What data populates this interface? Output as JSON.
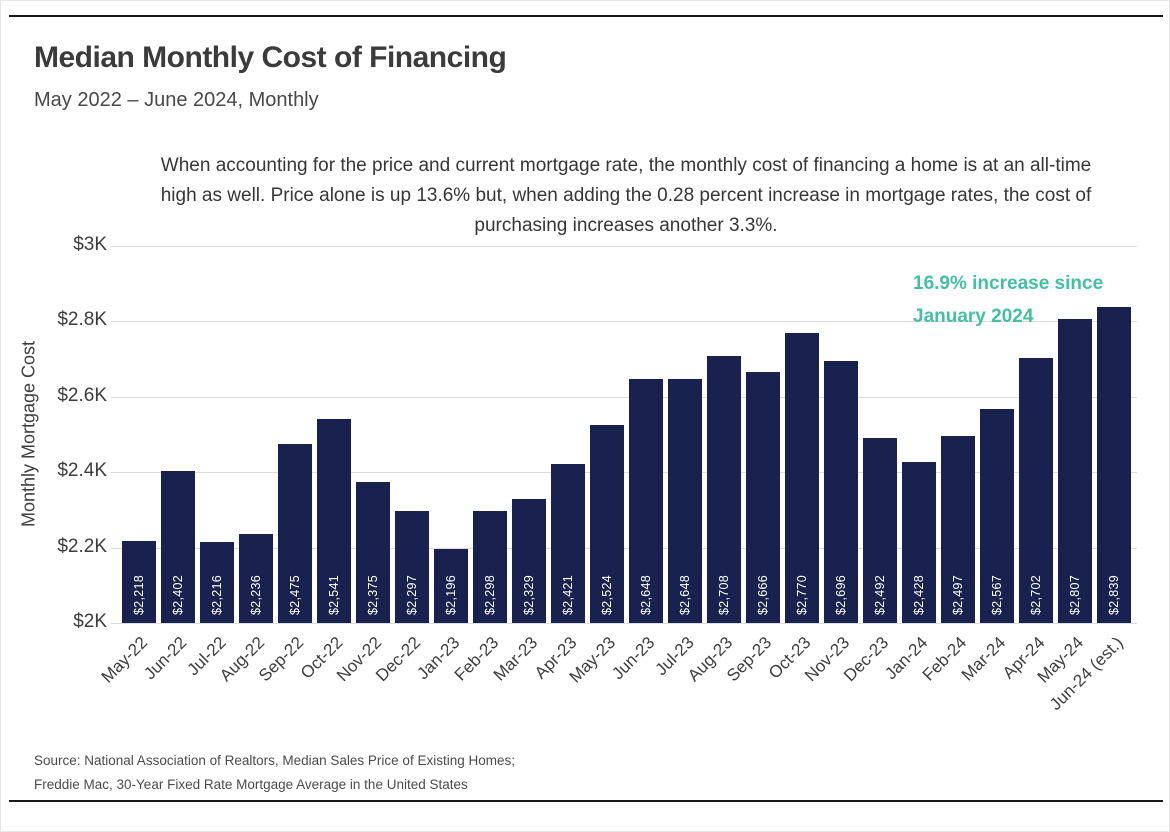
{
  "page": {
    "title": "Median Monthly Cost of Financing",
    "subtitle": "May 2022 – June 2024, Monthly",
    "description_lines": [
      "When accounting for the price and current mortgage rate, the monthly cost of financing a home is at an all-time",
      "high as well. Price alone is up 13.6% but, when adding the 0.28 percent increase in mortgage rates, the cost of",
      "purchasing increases another 3.3%."
    ],
    "source_lines": [
      "Source: National Association of Realtors, Median Sales Price of Existing Homes;",
      "Freddie Mac, 30-Year Fixed Rate Mortgage Average in the United States"
    ]
  },
  "chart_data": {
    "type": "bar",
    "title": "Median Monthly Cost of Financing",
    "subtitle": "May 2022 – June 2024, Monthly",
    "xlabel": "",
    "ylabel": "Monthly Mortgage Cost",
    "ylim": [
      2000,
      3000
    ],
    "grid": true,
    "categories": [
      "May-22",
      "Jun-22",
      "Jul-22",
      "Aug-22",
      "Sep-22",
      "Oct-22",
      "Nov-22",
      "Dec-22",
      "Jan-23",
      "Feb-23",
      "Mar-23",
      "Apr-23",
      "May-23",
      "Jun-23",
      "Jul-23",
      "Aug-23",
      "Sep-23",
      "Oct-23",
      "Nov-23",
      "Dec-23",
      "Jan-24",
      "Feb-24",
      "Mar-24",
      "Apr-24",
      "May-24",
      "Jun-24 (est.)"
    ],
    "values": [
      2218,
      2402,
      2216,
      2236,
      2475,
      2541,
      2375,
      2297,
      2196,
      2298,
      2329,
      2421,
      2524,
      2648,
      2648,
      2708,
      2666,
      2770,
      2696,
      2492,
      2428,
      2497,
      2567,
      2702,
      2807,
      2839
    ],
    "bar_labels": [
      "$2,218",
      "$2,402",
      "$2,216",
      "$2,236",
      "$2,475",
      "$2,541",
      "$2,375",
      "$2,297",
      "$2,196",
      "$2,298",
      "$2,329",
      "$2,421",
      "$2,524",
      "$2,648",
      "$2,648",
      "$2,708",
      "$2,666",
      "$2,770",
      "$2,696",
      "$2,492",
      "$2,428",
      "$2,497",
      "$2,567",
      "$2,702",
      "$2,807",
      "$2,839"
    ],
    "yticks": [
      {
        "value": 2000,
        "label": "$2K"
      },
      {
        "value": 2200,
        "label": "$2.2K"
      },
      {
        "value": 2400,
        "label": "$2.4K"
      },
      {
        "value": 2600,
        "label": "$2.6K"
      },
      {
        "value": 2800,
        "label": "$2.8K"
      },
      {
        "value": 3000,
        "label": "$3K"
      }
    ],
    "annotation": {
      "text_lines": [
        "16.9% increase since",
        "January 2024"
      ],
      "color": "#45BFA4"
    },
    "colors": {
      "bar": "#19224F",
      "accent": "#45BFA4",
      "grid": "#DCDCDC",
      "text": "#3D3D3D"
    },
    "legend": null
  }
}
